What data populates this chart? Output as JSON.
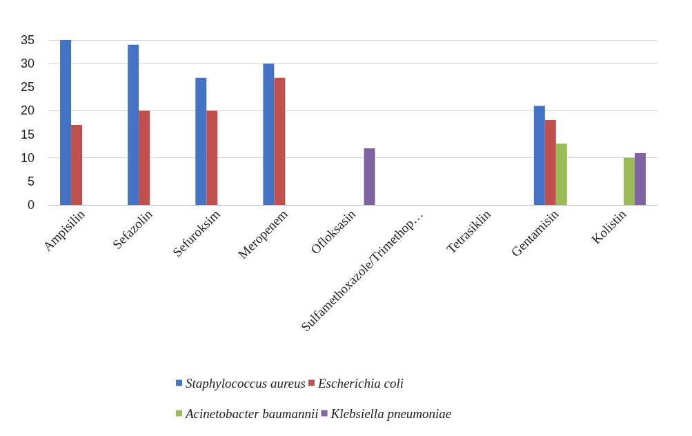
{
  "chart_data": {
    "type": "bar",
    "categories": [
      "Ampisilin",
      "Sefazolin",
      "Sefuroksim",
      "Meropenem",
      "Ofloksasin",
      "Sulfamethoxazole/Trimethop…",
      "Tetrasiklin",
      "Gentamisin",
      "Kolistin"
    ],
    "series": [
      {
        "name": "Staphylococcus aureus",
        "color": "#4472c4",
        "values": [
          35,
          34,
          27,
          30,
          0,
          0,
          0,
          21,
          0
        ]
      },
      {
        "name": "Escherichia coli",
        "color": "#c0504d",
        "values": [
          17,
          20,
          20,
          27,
          0,
          0,
          0,
          18,
          0
        ]
      },
      {
        "name": "Acinetobacter baumannii",
        "color": "#9bbb59",
        "values": [
          0,
          0,
          0,
          0,
          0,
          0,
          0,
          13,
          10
        ]
      },
      {
        "name": "Klebsiella pneumoniae",
        "color": "#8064a2",
        "values": [
          0,
          0,
          0,
          0,
          12,
          0,
          0,
          0,
          11
        ]
      }
    ],
    "ylim": [
      0,
      35
    ],
    "yticks": [
      0,
      5,
      10,
      15,
      20,
      25,
      30,
      35
    ],
    "grid": "y",
    "legend": "bottom"
  }
}
